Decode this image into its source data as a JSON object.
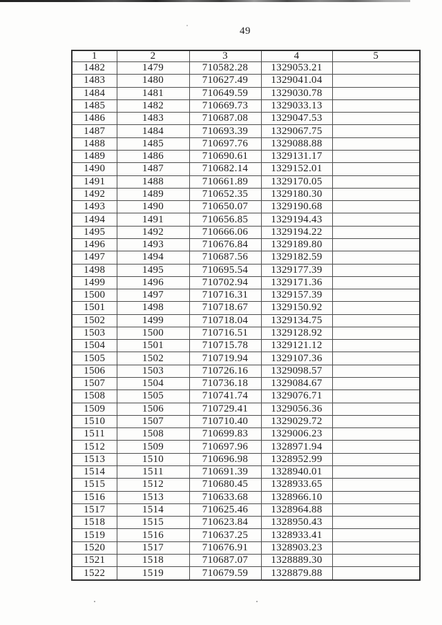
{
  "page": {
    "number": "49"
  },
  "table": {
    "headers": [
      "1",
      "2",
      "3",
      "4",
      "5"
    ],
    "rows": [
      [
        "1482",
        "1479",
        "710582.28",
        "1329053.21",
        ""
      ],
      [
        "1483",
        "1480",
        "710627.49",
        "1329041.04",
        ""
      ],
      [
        "1484",
        "1481",
        "710649.59",
        "1329030.78",
        ""
      ],
      [
        "1485",
        "1482",
        "710669.73",
        "1329033.13",
        ""
      ],
      [
        "1486",
        "1483",
        "710687.08",
        "1329047.53",
        ""
      ],
      [
        "1487",
        "1484",
        "710693.39",
        "1329067.75",
        ""
      ],
      [
        "1488",
        "1485",
        "710697.76",
        "1329088.88",
        ""
      ],
      [
        "1489",
        "1486",
        "710690.61",
        "1329131.17",
        ""
      ],
      [
        "1490",
        "1487",
        "710682.14",
        "1329152.01",
        ""
      ],
      [
        "1491",
        "1488",
        "710661.89",
        "1329170.05",
        ""
      ],
      [
        "1492",
        "1489",
        "710652.35",
        "1329180.30",
        ""
      ],
      [
        "1493",
        "1490",
        "710650.07",
        "1329190.68",
        ""
      ],
      [
        "1494",
        "1491",
        "710656.85",
        "1329194.43",
        ""
      ],
      [
        "1495",
        "1492",
        "710666.06",
        "1329194.22",
        ""
      ],
      [
        "1496",
        "1493",
        "710676.84",
        "1329189.80",
        ""
      ],
      [
        "1497",
        "1494",
        "710687.56",
        "1329182.59",
        ""
      ],
      [
        "1498",
        "1495",
        "710695.54",
        "1329177.39",
        ""
      ],
      [
        "1499",
        "1496",
        "710702.94",
        "1329171.36",
        ""
      ],
      [
        "1500",
        "1497",
        "710716.31",
        "1329157.39",
        ""
      ],
      [
        "1501",
        "1498",
        "710718.67",
        "1329150.92",
        ""
      ],
      [
        "1502",
        "1499",
        "710718.04",
        "1329134.75",
        ""
      ],
      [
        "1503",
        "1500",
        "710716.51",
        "1329128.92",
        ""
      ],
      [
        "1504",
        "1501",
        "710715.78",
        "1329121.12",
        ""
      ],
      [
        "1505",
        "1502",
        "710719.94",
        "1329107.36",
        ""
      ],
      [
        "1506",
        "1503",
        "710726.16",
        "1329098.57",
        ""
      ],
      [
        "1507",
        "1504",
        "710736.18",
        "1329084.67",
        ""
      ],
      [
        "1508",
        "1505",
        "710741.74",
        "1329076.71",
        ""
      ],
      [
        "1509",
        "1506",
        "710729.41",
        "1329056.36",
        ""
      ],
      [
        "1510",
        "1507",
        "710710.40",
        "1329029.72",
        ""
      ],
      [
        "1511",
        "1508",
        "710699.83",
        "1329006.23",
        ""
      ],
      [
        "1512",
        "1509",
        "710697.96",
        "1328971.94",
        ""
      ],
      [
        "1513",
        "1510",
        "710696.98",
        "1328952.99",
        ""
      ],
      [
        "1514",
        "1511",
        "710691.39",
        "1328940.01",
        ""
      ],
      [
        "1515",
        "1512",
        "710680.45",
        "1328933.65",
        ""
      ],
      [
        "1516",
        "1513",
        "710633.68",
        "1328966.10",
        ""
      ],
      [
        "1517",
        "1514",
        "710625.46",
        "1328964.88",
        ""
      ],
      [
        "1518",
        "1515",
        "710623.84",
        "1328950.43",
        ""
      ],
      [
        "1519",
        "1516",
        "710637.25",
        "1328933.41",
        ""
      ],
      [
        "1520",
        "1517",
        "710676.91",
        "1328903.23",
        ""
      ],
      [
        "1521",
        "1518",
        "710687.07",
        "1328889.30",
        ""
      ],
      [
        "1522",
        "1519",
        "710679.59",
        "1328879.88",
        ""
      ]
    ]
  }
}
